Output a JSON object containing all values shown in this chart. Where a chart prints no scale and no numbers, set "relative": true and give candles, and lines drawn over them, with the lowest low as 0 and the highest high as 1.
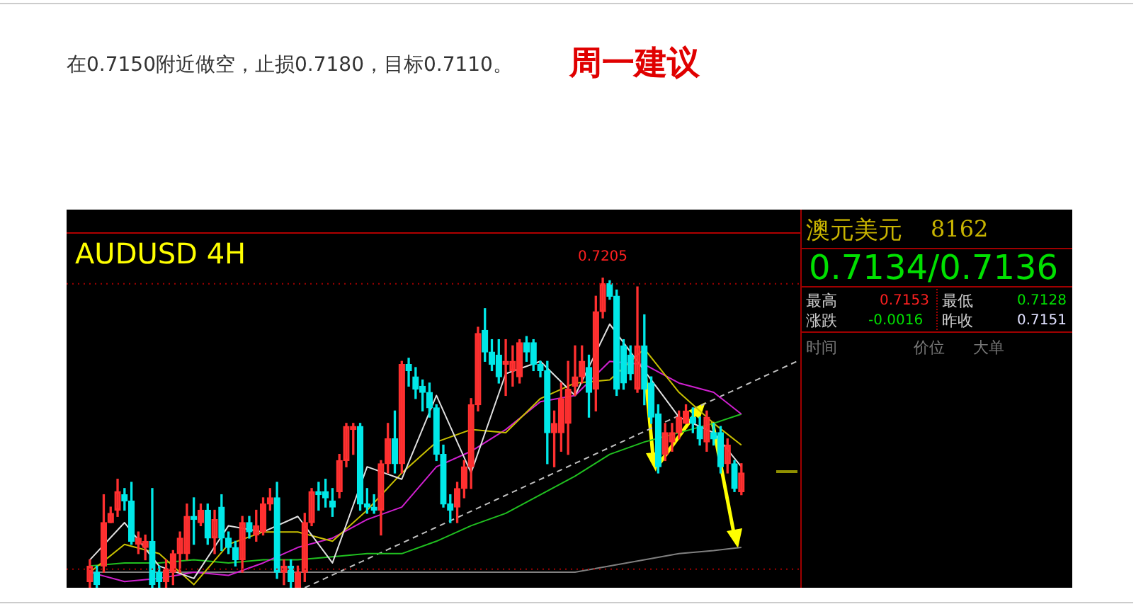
{
  "chart_data": {
    "type": "candlestick",
    "title": "周一建议",
    "subtitle": "在0.7150附近做空，止损0.7180，目标0.7110。",
    "relative": true,
    "tick_labels": false,
    "categories": [
      null,
      null,
      null,
      null,
      null,
      null,
      null,
      null,
      null,
      null,
      null,
      null,
      null,
      null,
      null,
      null,
      null,
      null,
      null,
      null,
      null,
      null,
      null,
      null,
      null,
      null,
      null,
      null,
      null,
      null,
      null,
      null,
      null,
      null,
      null,
      null,
      null,
      null,
      null,
      null,
      null,
      null,
      null,
      null,
      null,
      null,
      null,
      null,
      null,
      null,
      null,
      null,
      null,
      null,
      null,
      null,
      null,
      null,
      null,
      null,
      null,
      null,
      null,
      null,
      null,
      null,
      null,
      null,
      null,
      null,
      null,
      null,
      null,
      null,
      null,
      null,
      null,
      null,
      null,
      null,
      null,
      null,
      null,
      null,
      null,
      null,
      null,
      null,
      null,
      null,
      null,
      null,
      null,
      null,
      null,
      null,
      null,
      null,
      null,
      null,
      null,
      null,
      null
    ],
    "ohlc": [
      [
        0.02,
        0.09,
        0,
        0.07
      ],
      [
        0.05,
        0.07,
        0,
        0.01
      ],
      [
        0.07,
        0.3,
        0.05,
        0.21
      ],
      [
        0.21,
        0.26,
        0.21,
        0.24
      ],
      [
        0.25,
        0.35,
        0.23,
        0.31
      ],
      [
        0.3,
        0.32,
        0.25,
        0.28
      ],
      [
        0.28,
        0.34,
        0.14,
        0.15
      ],
      [
        0.14,
        0.18,
        0.11,
        0.16
      ],
      [
        0.13,
        0.17,
        0.09,
        0.15
      ],
      [
        0.15,
        0.32,
        0,
        0.01
      ],
      [
        0.05,
        0.07,
        0,
        0.02
      ],
      [
        0.02,
        0.09,
        0,
        0.06
      ],
      [
        0.05,
        0.12,
        0.01,
        0.11
      ],
      [
        0.11,
        0.18,
        0.05,
        0.16
      ],
      [
        0.11,
        0.27,
        0.09,
        0.23
      ],
      [
        0.23,
        0.29,
        0.14,
        0.22
      ],
      [
        0.21,
        0.27,
        0.2,
        0.25
      ],
      [
        0.25,
        0.27,
        0.14,
        0.16
      ],
      [
        0.16,
        0.25,
        0.11,
        0.22
      ],
      [
        0.26,
        0.3,
        0.12,
        0.16
      ],
      [
        0.16,
        0.18,
        0.11,
        0.13
      ],
      [
        0.13,
        0.15,
        0.07,
        0.09
      ],
      [
        0.09,
        0.23,
        0.05,
        0.21
      ],
      [
        0.21,
        0.23,
        0.16,
        0.18
      ],
      [
        0.17,
        0.25,
        0.15,
        0.2
      ],
      [
        0.18,
        0.29,
        0.17,
        0.27
      ],
      [
        0.27,
        0.32,
        0.25,
        0.29
      ],
      [
        0.29,
        0.34,
        0.03,
        0.05
      ],
      [
        0.05,
        0.09,
        0.01,
        0.07
      ],
      [
        0.07,
        0.09,
        0,
        0.02
      ],
      [
        0,
        0.07,
        0,
        0.05
      ],
      [
        0.05,
        0.24,
        0.02,
        0.21
      ],
      [
        0.21,
        0.32,
        0.2,
        0.31
      ],
      [
        0.31,
        0.34,
        0.25,
        0.3
      ],
      [
        0.31,
        0.35,
        0.26,
        0.29
      ],
      [
        0.28,
        0.32,
        0.23,
        0.26
      ],
      [
        0.31,
        0.43,
        0.29,
        0.41
      ],
      [
        0.41,
        0.53,
        0.39,
        0.52
      ],
      [
        0.51,
        0.53,
        0.43,
        0.52
      ],
      [
        0.52,
        0.53,
        0.25,
        0.27
      ],
      [
        0.27,
        0.32,
        0.24,
        0.26
      ],
      [
        0.26,
        0.3,
        0.24,
        0.25
      ],
      [
        0.25,
        0.41,
        0.17,
        0.4
      ],
      [
        0.4,
        0.53,
        0.37,
        0.48
      ],
      [
        0.48,
        0.57,
        0.37,
        0.4
      ],
      [
        0.4,
        0.73,
        0.37,
        0.72
      ],
      [
        0.72,
        0.74,
        0.65,
        0.7
      ],
      [
        0.68,
        0.71,
        0.61,
        0.64
      ],
      [
        0.65,
        0.67,
        0.57,
        0.63
      ],
      [
        0.63,
        0.66,
        0.55,
        0.58
      ],
      [
        0.58,
        0.59,
        0.41,
        0.43
      ],
      [
        0.43,
        0.46,
        0.26,
        0.27
      ],
      [
        0.27,
        0.3,
        0.21,
        0.25
      ],
      [
        0.26,
        0.34,
        0.21,
        0.32
      ],
      [
        0.32,
        0.41,
        0.29,
        0.39
      ],
      [
        0.39,
        0.61,
        0.32,
        0.59
      ],
      [
        0.59,
        0.84,
        0.57,
        0.82
      ],
      [
        0.83,
        0.9,
        0.73,
        0.76
      ],
      [
        0.76,
        0.8,
        0.7,
        0.72
      ],
      [
        0.75,
        0.8,
        0.66,
        0.68
      ],
      [
        0.72,
        0.8,
        0.62,
        0.73
      ],
      [
        0.7,
        0.78,
        0.65,
        0.73
      ],
      [
        0.68,
        0.8,
        0.66,
        0.79
      ],
      [
        0.79,
        0.81,
        0.73,
        0.76
      ],
      [
        0.79,
        0.8,
        0.7,
        0.72
      ],
      [
        0.72,
        0.73,
        0.68,
        0.7
      ],
      [
        0.7,
        0.73,
        0.4,
        0.5
      ],
      [
        0.5,
        0.57,
        0.39,
        0.53
      ],
      [
        0.5,
        0.66,
        0.44,
        0.61
      ],
      [
        0.53,
        0.73,
        0.43,
        0.64
      ],
      [
        0.65,
        0.78,
        0.62,
        0.68
      ],
      [
        0.68,
        0.78,
        0.66,
        0.73
      ],
      [
        0.71,
        0.75,
        0.55,
        0.63
      ],
      [
        0.64,
        0.94,
        0.57,
        0.89
      ],
      [
        0.89,
        1,
        0.87,
        0.98
      ],
      [
        0.98,
        0.99,
        0.93,
        0.94
      ],
      [
        0.94,
        0.96,
        0.62,
        0.64
      ],
      [
        0.78,
        0.8,
        0.64,
        0.66
      ],
      [
        0.75,
        0.78,
        0.67,
        0.69
      ],
      [
        0.64,
        0.97,
        0.63,
        0.78
      ],
      [
        0.78,
        0.88,
        0.59,
        0.64
      ],
      [
        0.66,
        0.68,
        0.53,
        0.55
      ],
      [
        0.56,
        0.59,
        0.37,
        0.39
      ],
      [
        0.43,
        0.53,
        0.41,
        0.5
      ],
      [
        0.47,
        0.53,
        0.44,
        0.5
      ],
      [
        0.5,
        0.57,
        0.48,
        0.55
      ],
      [
        0.53,
        0.59,
        0.53,
        0.57
      ],
      [
        0.55,
        0.58,
        0.5,
        0.53
      ],
      [
        0.52,
        0.55,
        0.46,
        0.48
      ],
      [
        0.47,
        0.57,
        0.44,
        0.55
      ],
      [
        0.5,
        0.53,
        0.46,
        0.48
      ],
      [
        0.5,
        0.52,
        0.37,
        0.39
      ],
      [
        0.4,
        0.48,
        0.37,
        0.46
      ],
      [
        0.4,
        0.41,
        0.31,
        0.32
      ],
      [
        0.31,
        0.4,
        0.3,
        0.37
      ],
      null,
      null,
      null,
      null,
      null,
      null,
      null,
      null
    ],
    "colors": [
      "#ff3030",
      "#00e8e8",
      "#ff3030",
      "#ff3030",
      "#ff3030",
      "#00e8e8",
      "#00e8e8",
      "#ff3030",
      "#ff3030",
      "#00e8e8",
      "#00e8e8",
      "#ff3030",
      "#ff3030",
      "#ff3030",
      "#ff3030",
      "#00e8e8",
      "#ff3030",
      "#00e8e8",
      "#ff3030",
      "#00e8e8",
      "#00e8e8",
      "#00e8e8",
      "#ff3030",
      "#00e8e8",
      "#ff3030",
      "#ff3030",
      "#ff3030",
      "#00e8e8",
      "#ff3030",
      "#00e8e8",
      "#ff3030",
      "#ff3030",
      "#ff3030",
      "#00e8e8",
      "#00e8e8",
      "#00e8e8",
      "#ff3030",
      "#ff3030",
      "#ff3030",
      "#00e8e8",
      "#00e8e8",
      "#00e8e8",
      "#ff3030",
      "#ff3030",
      "#00e8e8",
      "#ff3030",
      "#00e8e8",
      "#00e8e8",
      "#00e8e8",
      "#00e8e8",
      "#00e8e8",
      "#00e8e8",
      "#00e8e8",
      "#ff3030",
      "#ff3030",
      "#ff3030",
      "#ff3030",
      "#00e8e8",
      "#00e8e8",
      "#00e8e8",
      "#ff3030",
      "#ff3030",
      "#ff3030",
      "#00e8e8",
      "#00e8e8",
      "#00e8e8",
      "#00e8e8",
      "#ff3030",
      "#ff3030",
      "#ff3030",
      "#ff3030",
      "#ff3030",
      "#00e8e8",
      "#ff3030",
      "#ff3030",
      "#00e8e8",
      "#00e8e8",
      "#00e8e8",
      "#00e8e8",
      "#ff3030",
      "#00e8e8",
      "#00e8e8",
      "#00e8e8",
      "#ff3030",
      "#ff3030",
      "#ff3030",
      "#ff3030",
      "#00e8e8",
      "#00e8e8",
      "#ff3030",
      "#00e8e8",
      "#00e8e8",
      "#ff3030",
      "#00e8e8",
      "#ff3030",
      null,
      null,
      null,
      null,
      null,
      null,
      null,
      null
    ],
    "series": [
      {
        "type": "line",
        "color": "#e0e0e0",
        "values": [
          0.09,
          null,
          null,
          null,
          null,
          0.21,
          null,
          null,
          null,
          null,
          0.07,
          null,
          null,
          null,
          null,
          0.03,
          null,
          null,
          null,
          null,
          0.2,
          null,
          null,
          null,
          null,
          0.18,
          null,
          null,
          null,
          null,
          0.23,
          null,
          null,
          null,
          null,
          0.08,
          null,
          null,
          null,
          null,
          0.39,
          null,
          null,
          null,
          null,
          0.35,
          null,
          null,
          null,
          null,
          0.62,
          null,
          null,
          null,
          null,
          0.37,
          null,
          null,
          null,
          null,
          0.69,
          null,
          null,
          null,
          null,
          0.73,
          null,
          null,
          null,
          null,
          0.62,
          null,
          null,
          null,
          null,
          0.85,
          null,
          null,
          null,
          null,
          null,
          null,
          null,
          null,
          null,
          0.55,
          null,
          null,
          null,
          null,
          0.5,
          null,
          null,
          null,
          0.39,
          null,
          null,
          null,
          null,
          null,
          null,
          null,
          null
        ]
      },
      {
        "type": "line",
        "color": "#c8c000",
        "values": [
          0.05,
          null,
          null,
          null,
          null,
          0.14,
          null,
          null,
          null,
          null,
          0.11,
          null,
          null,
          null,
          null,
          0.01,
          null,
          null,
          null,
          null,
          0.14,
          null,
          null,
          null,
          null,
          0.18,
          null,
          null,
          null,
          null,
          0.18,
          null,
          null,
          null,
          null,
          0.15,
          null,
          null,
          null,
          null,
          0.25,
          null,
          null,
          null,
          null,
          0.37,
          null,
          null,
          null,
          null,
          0.47,
          null,
          null,
          null,
          null,
          0.51,
          null,
          null,
          null,
          null,
          0.5,
          null,
          null,
          null,
          null,
          0.61,
          null,
          null,
          null,
          null,
          0.66,
          null,
          null,
          null,
          null,
          0.67,
          null,
          null,
          null,
          null,
          0.77,
          null,
          null,
          null,
          null,
          0.63,
          null,
          null,
          null,
          null,
          0.53,
          null,
          null,
          null,
          0.46,
          null,
          null,
          null,
          null,
          null,
          null,
          null,
          null
        ]
      },
      {
        "type": "line",
        "color": "#d020d0",
        "values": [
          0.05,
          null,
          null,
          null,
          null,
          0.02,
          null,
          null,
          null,
          null,
          0.03,
          null,
          null,
          null,
          null,
          0.05,
          null,
          null,
          null,
          null,
          0.04,
          null,
          null,
          null,
          null,
          0.08,
          null,
          null,
          null,
          null,
          0.13,
          null,
          null,
          null,
          null,
          0.16,
          null,
          null,
          null,
          null,
          0.22,
          null,
          null,
          null,
          null,
          0.26,
          null,
          null,
          null,
          null,
          0.39,
          null,
          null,
          null,
          null,
          0.44,
          null,
          null,
          null,
          null,
          0.51,
          null,
          null,
          null,
          null,
          0.6,
          null,
          null,
          null,
          null,
          0.62,
          null,
          null,
          null,
          null,
          0.73,
          null,
          null,
          null,
          null,
          0.72,
          null,
          null,
          null,
          null,
          0.66,
          null,
          null,
          null,
          null,
          0.63,
          null,
          null,
          null,
          0.56,
          null,
          null,
          null,
          null,
          null,
          null,
          null,
          null
        ]
      },
      {
        "type": "line",
        "color": "#20c020",
        "values": [
          0.07,
          null,
          null,
          null,
          null,
          0.08,
          null,
          null,
          null,
          null,
          0.08,
          null,
          null,
          null,
          null,
          0.09,
          null,
          null,
          null,
          null,
          0.08,
          null,
          null,
          null,
          null,
          0.09,
          null,
          null,
          null,
          null,
          0.09,
          null,
          null,
          null,
          null,
          0.1,
          null,
          null,
          null,
          null,
          0.11,
          null,
          null,
          null,
          null,
          0.11,
          null,
          null,
          null,
          null,
          0.15,
          null,
          null,
          null,
          null,
          0.2,
          null,
          null,
          null,
          null,
          0.24,
          null,
          null,
          null,
          null,
          0.3,
          null,
          null,
          null,
          null,
          0.36,
          null,
          null,
          null,
          null,
          0.43,
          null,
          null,
          null,
          null,
          0.47,
          null,
          null,
          null,
          null,
          0.5,
          null,
          null,
          null,
          null,
          0.53,
          null,
          null,
          null,
          0.56,
          null,
          null,
          null,
          null,
          null,
          null,
          null,
          null
        ]
      },
      {
        "type": "line",
        "color": "#808080",
        "values": [
          0.05,
          null,
          null,
          null,
          null,
          0.05,
          null,
          null,
          null,
          null,
          0.05,
          null,
          null,
          null,
          null,
          0.05,
          null,
          null,
          null,
          null,
          0.05,
          null,
          null,
          null,
          null,
          0.05,
          null,
          null,
          null,
          null,
          0.05,
          null,
          null,
          null,
          null,
          0.05,
          null,
          null,
          null,
          null,
          0.05,
          null,
          null,
          null,
          null,
          0.05,
          null,
          null,
          null,
          null,
          0.05,
          null,
          null,
          null,
          null,
          0.05,
          null,
          null,
          null,
          null,
          0.05,
          null,
          null,
          null,
          null,
          0.05,
          null,
          null,
          null,
          null,
          0.05,
          null,
          null,
          null,
          null,
          0.07,
          null,
          null,
          null,
          null,
          0.09,
          null,
          null,
          null,
          null,
          0.11,
          null,
          null,
          null,
          null,
          0.12,
          null,
          null,
          null,
          0.13,
          null,
          null,
          null,
          null,
          null,
          null,
          null,
          null
        ]
      },
      {
        "type": "line",
        "color": "#c0c0c0",
        "line_style": "dashed",
        "values": [
          null,
          null,
          null,
          null,
          null,
          null,
          null,
          null,
          null,
          null,
          null,
          null,
          null,
          null,
          null,
          null,
          null,
          null,
          null,
          null,
          null,
          null,
          null,
          null,
          null,
          null,
          null,
          null,
          null,
          null,
          null,
          0,
          null,
          null,
          null,
          null,
          null,
          null,
          null,
          null,
          null,
          null,
          null,
          null,
          null,
          null,
          null,
          null,
          null,
          null,
          null,
          null,
          null,
          null,
          null,
          null,
          null,
          null,
          null,
          null,
          null,
          null,
          null,
          null,
          null,
          null,
          null,
          null,
          null,
          null,
          null,
          null,
          null,
          null,
          null,
          null,
          null,
          null,
          null,
          null,
          null,
          null,
          null,
          null,
          null,
          null,
          null,
          null,
          null,
          null,
          null,
          null,
          null,
          null,
          null,
          null,
          null,
          null,
          null,
          null,
          null,
          null,
          0.73
        ]
      }
    ],
    "ref_lines": [
      {
        "axis": "y",
        "value": 0.98,
        "color": "#a00000",
        "line_style": "dotted"
      },
      {
        "axis": "y",
        "value": 0.06,
        "color": "#a00000",
        "line_style": "dotted"
      }
    ],
    "annotations": [
      "AUDUSD 4H",
      {
        "text": "0.7205",
        "y": 1
      },
      "澳元美元",
      "8162",
      "0.7134/0.7136",
      "最高",
      "0.7153",
      "最低",
      "0.7128",
      "涨跌",
      "-0.0016",
      "昨收",
      "0.7151",
      "时间",
      "价位",
      "大单"
    ]
  }
}
